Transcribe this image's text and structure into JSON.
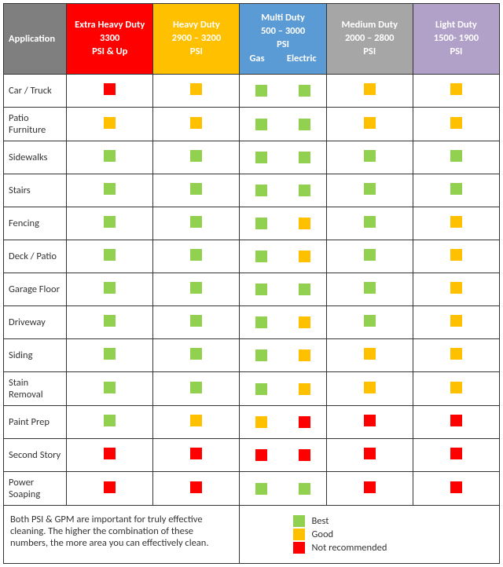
{
  "colors": {
    "best": "#92d050",
    "good": "#ffc000",
    "not": "#ff0000",
    "header_app": "#7f7f7f",
    "header_extra": "#ff0000",
    "header_heavy": "#ffc000",
    "header_multi": "#5b9bd5",
    "header_medium": "#a6a6a6",
    "header_light": "#b1a0c7"
  },
  "headers": {
    "application": "Application",
    "columns": [
      {
        "key": "extra",
        "title": "Extra Heavy Duty",
        "range": "3300",
        "psi": "PSI & Up",
        "bg": "header_extra"
      },
      {
        "key": "heavy",
        "title": "Heavy Duty",
        "range": "2900 – 3200",
        "psi": "PSI",
        "bg": "header_heavy"
      },
      {
        "key": "multi",
        "title": "Multi Duty",
        "range": "500 – 3000",
        "psi": "PSI",
        "bg": "header_multi",
        "sub": [
          "Gas",
          "Electric"
        ]
      },
      {
        "key": "medium",
        "title": "Medium Duty",
        "range": "2000 – 2800",
        "psi": "PSI",
        "bg": "header_medium"
      },
      {
        "key": "light",
        "title": "Light Duty",
        "range": "1500- 1900",
        "psi": "PSI",
        "bg": "header_light"
      }
    ]
  },
  "rows": [
    {
      "label": "Car / Truck",
      "ratings": [
        "not",
        "good",
        [
          "best",
          "best"
        ],
        "good",
        "good"
      ]
    },
    {
      "label": "Patio Furniture",
      "ratings": [
        "good",
        "good",
        [
          "best",
          "best"
        ],
        "good",
        "good"
      ]
    },
    {
      "label": "Sidewalks",
      "ratings": [
        "best",
        "best",
        [
          "best",
          "best"
        ],
        "best",
        "best"
      ]
    },
    {
      "label": "Stairs",
      "ratings": [
        "best",
        "best",
        [
          "best",
          "best"
        ],
        "best",
        "best"
      ]
    },
    {
      "label": "Fencing",
      "ratings": [
        "best",
        "best",
        [
          "best",
          "good"
        ],
        "best",
        "good"
      ]
    },
    {
      "label": "Deck / Patio",
      "ratings": [
        "best",
        "best",
        [
          "best",
          "good"
        ],
        "best",
        "good"
      ]
    },
    {
      "label": "Garage Floor",
      "ratings": [
        "best",
        "best",
        [
          "best",
          "best"
        ],
        "best",
        "good"
      ]
    },
    {
      "label": "Driveway",
      "ratings": [
        "best",
        "best",
        [
          "best",
          "good"
        ],
        "best",
        "good"
      ]
    },
    {
      "label": "Siding",
      "ratings": [
        "best",
        "best",
        [
          "best",
          "good"
        ],
        "good",
        "good"
      ]
    },
    {
      "label": "Stain Removal",
      "ratings": [
        "best",
        "best",
        [
          "best",
          "good"
        ],
        "good",
        "good"
      ]
    },
    {
      "label": "Paint Prep",
      "ratings": [
        "best",
        "good",
        [
          "good",
          "not"
        ],
        "not",
        "not"
      ]
    },
    {
      "label": "Second Story",
      "ratings": [
        "not",
        "not",
        [
          "not",
          "not"
        ],
        "not",
        "not"
      ]
    },
    {
      "label": "Power Soaping",
      "ratings": [
        "not",
        "not",
        [
          "best",
          "best"
        ],
        "not",
        "not"
      ]
    }
  ],
  "footer": {
    "note": "Both PSI & GPM are important for truly effective cleaning. The higher the combination of these numbers, the more area you can effectively clean.",
    "legend": [
      {
        "color": "best",
        "label": "Best"
      },
      {
        "color": "good",
        "label": "Good"
      },
      {
        "color": "not",
        "label": "Not recommended"
      }
    ]
  },
  "layout": {
    "col_widths": {
      "app": 80,
      "duty": 110
    }
  }
}
